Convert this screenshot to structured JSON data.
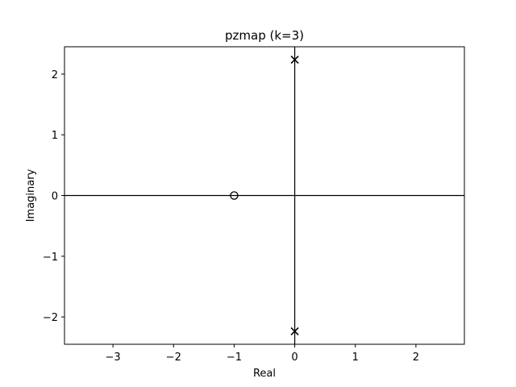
{
  "chart_data": {
    "type": "scatter",
    "title": "pzmap (k=3)",
    "xlabel": "Real",
    "ylabel": "Imaginary",
    "xlim": [
      -3.8,
      2.8
    ],
    "ylim": [
      -2.45,
      2.45
    ],
    "xticks": [
      -3,
      -2,
      -1,
      0,
      1,
      2
    ],
    "xtick_labels": [
      "−3",
      "−2",
      "−1",
      "0",
      "1",
      "2"
    ],
    "yticks": [
      -2,
      -1,
      0,
      1,
      2
    ],
    "ytick_labels": [
      "−2",
      "−1",
      "0",
      "1",
      "2"
    ],
    "grid": false,
    "reference_lines": {
      "real_axis_at_y": 0,
      "imag_axis_at_x": 0
    },
    "series": [
      {
        "marker": "x",
        "points": [
          [
            0,
            2.236
          ],
          [
            0,
            -2.236
          ]
        ]
      },
      {
        "marker": "o",
        "points": [
          [
            -1,
            0
          ]
        ]
      }
    ],
    "colors": {
      "marks": "#000000",
      "frame": "#000000",
      "background": "#ffffff"
    }
  }
}
